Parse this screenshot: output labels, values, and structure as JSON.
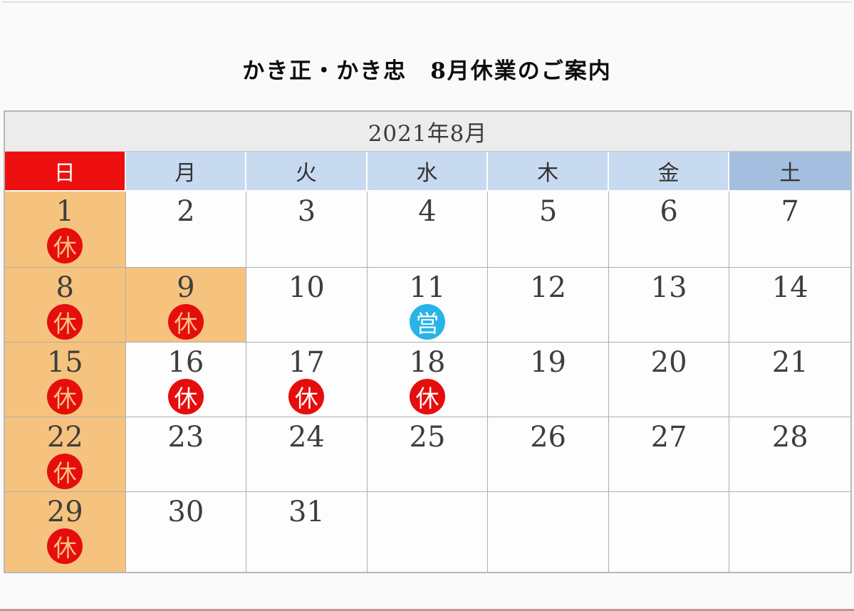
{
  "page": {
    "title": "かき正・かき忠　8月休業のご案内"
  },
  "calendar": {
    "month_title": "2021年8月",
    "weekday_headers": [
      {
        "label": "日",
        "key": "sun"
      },
      {
        "label": "月",
        "key": "mon"
      },
      {
        "label": "火",
        "key": "tue"
      },
      {
        "label": "水",
        "key": "wed"
      },
      {
        "label": "木",
        "key": "thu"
      },
      {
        "label": "金",
        "key": "fri"
      },
      {
        "label": "土",
        "key": "sat"
      }
    ],
    "marks": {
      "closed_label": "休",
      "open_label": "営"
    },
    "colors": {
      "sunday_header_bg": "#ee1010",
      "weekday_header_bg": "#c8daf0",
      "saturday_header_bg": "#a3bedf",
      "holiday_cell_bg": "#f6c37e",
      "closed_mark_bg": "#e60d0d",
      "open_mark_bg": "#29b4e8"
    },
    "weeks": [
      [
        {
          "day": "1",
          "mark": "closed",
          "highlight": true
        },
        {
          "day": "2"
        },
        {
          "day": "3"
        },
        {
          "day": "4"
        },
        {
          "day": "5"
        },
        {
          "day": "6"
        },
        {
          "day": "7"
        }
      ],
      [
        {
          "day": "8",
          "mark": "closed",
          "highlight": true
        },
        {
          "day": "9",
          "mark": "closed",
          "highlight": true
        },
        {
          "day": "10"
        },
        {
          "day": "11",
          "mark": "open"
        },
        {
          "day": "12"
        },
        {
          "day": "13"
        },
        {
          "day": "14"
        }
      ],
      [
        {
          "day": "15",
          "mark": "closed",
          "highlight": true
        },
        {
          "day": "16",
          "mark": "closed"
        },
        {
          "day": "17",
          "mark": "closed"
        },
        {
          "day": "18",
          "mark": "closed"
        },
        {
          "day": "19"
        },
        {
          "day": "20"
        },
        {
          "day": "21"
        }
      ],
      [
        {
          "day": "22",
          "mark": "closed",
          "highlight": true
        },
        {
          "day": "23"
        },
        {
          "day": "24"
        },
        {
          "day": "25"
        },
        {
          "day": "26"
        },
        {
          "day": "27"
        },
        {
          "day": "28"
        }
      ],
      [
        {
          "day": "29",
          "mark": "closed",
          "highlight": true
        },
        {
          "day": "30"
        },
        {
          "day": "31"
        },
        {
          "day": ""
        },
        {
          "day": ""
        },
        {
          "day": ""
        },
        {
          "day": ""
        }
      ]
    ]
  }
}
